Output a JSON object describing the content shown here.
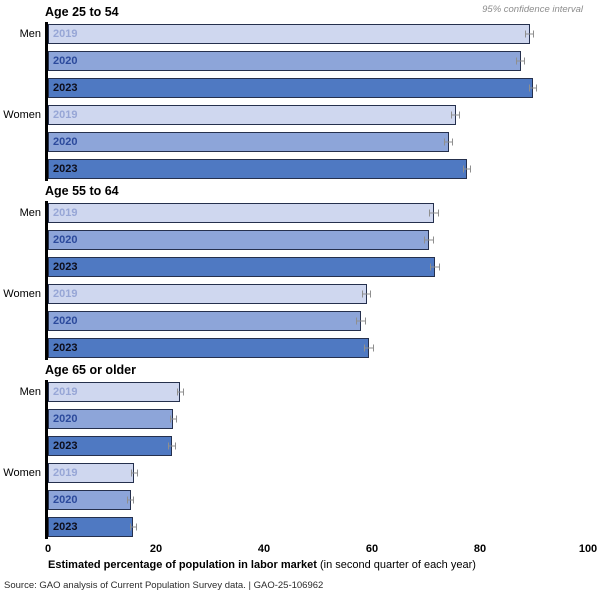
{
  "note": "95% confidence interval",
  "colors": {
    "bar_fill": {
      "2019": "#cfd7ef",
      "2020": "#8da5d9",
      "2023": "#4f79c2"
    },
    "year_label": {
      "2019": "#97a6d6",
      "2020": "#2c4a9c",
      "2023": "#0d0d1a"
    },
    "bar_border": "#25304d",
    "ci_whisker": "#8f8f8f",
    "axis_line": "#000000"
  },
  "chart_data": {
    "type": "bar",
    "orientation": "horizontal",
    "xlabel_bold": "Estimated percentage of population in labor market",
    "xlabel_normal": "(in second quarter of each year)",
    "xlim": [
      0,
      100
    ],
    "xticks": [
      "0",
      "20",
      "40",
      "60",
      "80",
      "100"
    ],
    "legend_note": "95% confidence interval",
    "grid": false,
    "groups": [
      {
        "title": "Age 25 to 54",
        "rows": [
          {
            "gender": "Men",
            "year": "2019",
            "value": 89.2,
            "ci": 0.8
          },
          {
            "gender": "Men",
            "year": "2020",
            "value": 87.5,
            "ci": 0.8
          },
          {
            "gender": "Men",
            "year": "2023",
            "value": 89.8,
            "ci": 0.8
          },
          {
            "gender": "Women",
            "year": "2019",
            "value": 75.5,
            "ci": 0.8
          },
          {
            "gender": "Women",
            "year": "2020",
            "value": 74.2,
            "ci": 0.8
          },
          {
            "gender": "Women",
            "year": "2023",
            "value": 77.6,
            "ci": 0.8
          }
        ]
      },
      {
        "title": "Age 55 to 64",
        "rows": [
          {
            "gender": "Men",
            "year": "2019",
            "value": 71.5,
            "ci": 0.9
          },
          {
            "gender": "Men",
            "year": "2020",
            "value": 70.5,
            "ci": 0.9
          },
          {
            "gender": "Men",
            "year": "2023",
            "value": 71.7,
            "ci": 0.9
          },
          {
            "gender": "Women",
            "year": "2019",
            "value": 59.0,
            "ci": 0.9
          },
          {
            "gender": "Women",
            "year": "2020",
            "value": 58.0,
            "ci": 0.9
          },
          {
            "gender": "Women",
            "year": "2023",
            "value": 59.5,
            "ci": 0.9
          }
        ]
      },
      {
        "title": "Age 65 or older",
        "rows": [
          {
            "gender": "Men",
            "year": "2019",
            "value": 24.5,
            "ci": 0.7
          },
          {
            "gender": "Men",
            "year": "2020",
            "value": 23.2,
            "ci": 0.7
          },
          {
            "gender": "Men",
            "year": "2023",
            "value": 23.0,
            "ci": 0.7
          },
          {
            "gender": "Women",
            "year": "2019",
            "value": 16.0,
            "ci": 0.7
          },
          {
            "gender": "Women",
            "year": "2020",
            "value": 15.3,
            "ci": 0.7
          },
          {
            "gender": "Women",
            "year": "2023",
            "value": 15.8,
            "ci": 0.7
          }
        ]
      }
    ]
  },
  "source": "Source: GAO analysis of Current Population Survey data.  |  GAO-25-106962"
}
